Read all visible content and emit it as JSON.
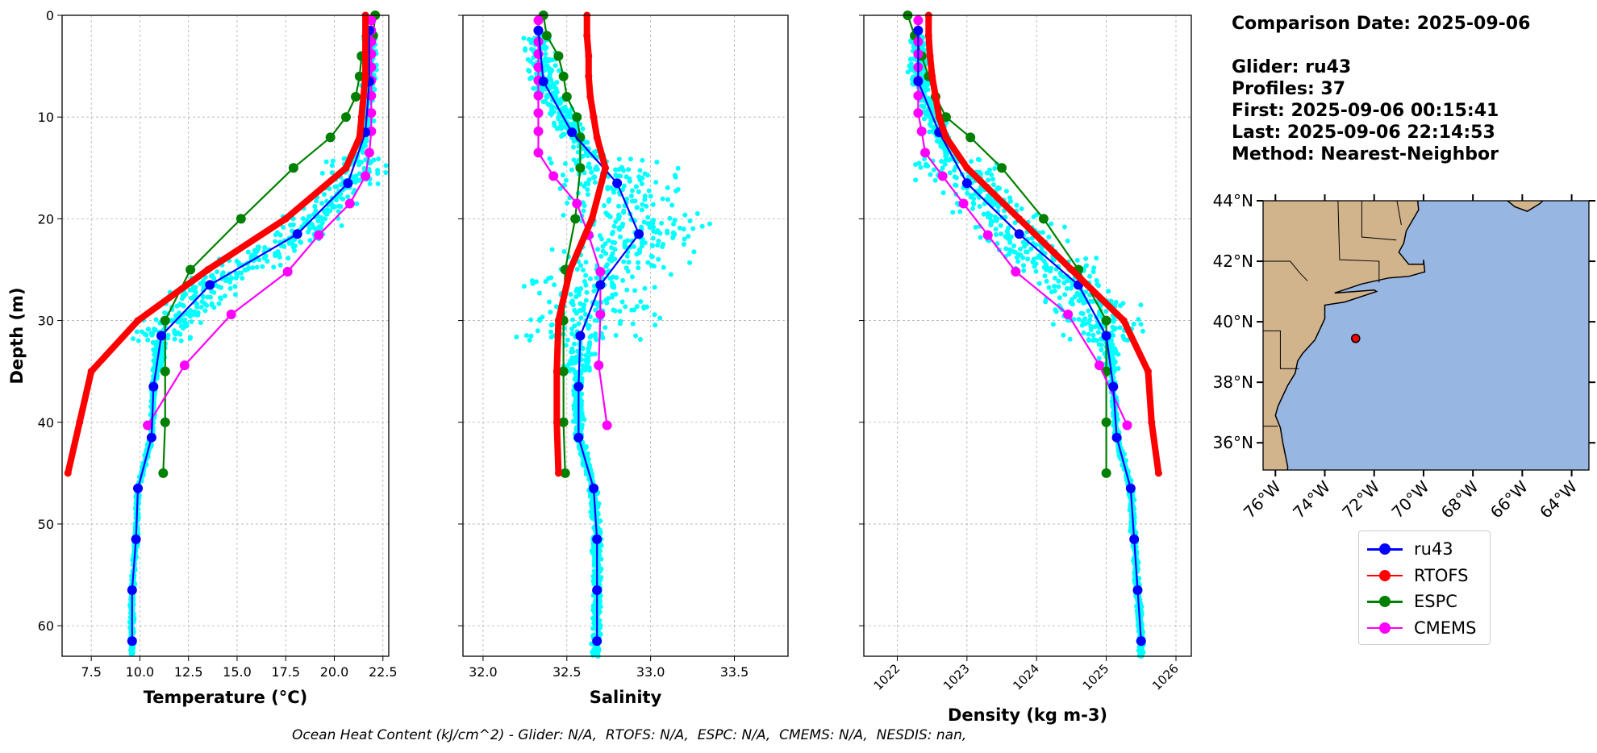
{
  "info": {
    "comparison_date": "Comparison Date: 2025-09-06",
    "glider": "Glider: ru43",
    "profiles": "Profiles: 37",
    "first": "First: 2025-09-06 00:15:41",
    "last": "Last: 2025-09-06 22:14:53",
    "method": "Method: Nearest-Neighbor"
  },
  "footer": "Ocean Heat Content (kJ/cm^2) - Glider: N/A,  RTOFS: N/A,  ESPC: N/A,  CMEMS: N/A,  NESDIS: nan,",
  "colors": {
    "ru43": "#0000ff",
    "RTOFS": "#ff0000",
    "ESPC": "#008000",
    "CMEMS": "#ff00ff",
    "glider_obs": "#00ffff",
    "land": "#d2b48c",
    "ocean": "#97b6e1"
  },
  "legend": [
    {
      "name": "ru43",
      "color": "#0000ff"
    },
    {
      "name": "RTOFS",
      "color": "#ff0000"
    },
    {
      "name": "ESPC",
      "color": "#008000"
    },
    {
      "name": "CMEMS",
      "color": "#ff00ff"
    }
  ],
  "chart_data": [
    {
      "type": "line",
      "xlabel": "Temperature (°C)",
      "ylabel": "Depth (m)",
      "xlim": [
        6.0,
        22.8
      ],
      "ylim": [
        63,
        0
      ],
      "grid": true,
      "xticks": [
        "7.5",
        "10.0",
        "12.5",
        "15.0",
        "17.5",
        "20.0",
        "22.5"
      ],
      "yticks": [
        "0",
        "10",
        "20",
        "30",
        "40",
        "50",
        "60"
      ],
      "series": [
        {
          "name": "ru43",
          "depth": [
            1.5,
            6.5,
            11.5,
            16.5,
            21.5,
            26.5,
            31.5,
            36.5,
            41.5,
            46.5,
            51.5,
            56.5,
            61.5
          ],
          "values": [
            21.8,
            21.8,
            21.6,
            20.7,
            18.1,
            13.6,
            11.1,
            10.7,
            10.6,
            9.9,
            9.8,
            9.6,
            9.6
          ]
        },
        {
          "name": "RTOFS",
          "depth": [
            0,
            2,
            4,
            6,
            8,
            10,
            12,
            15,
            20,
            25,
            30,
            35,
            40,
            45
          ],
          "values": [
            21.6,
            21.6,
            21.6,
            21.6,
            21.5,
            21.4,
            21.3,
            20.6,
            17.5,
            13.5,
            9.9,
            7.5,
            6.9,
            6.3
          ]
        },
        {
          "name": "ESPC",
          "depth": [
            0,
            2,
            4,
            6,
            8,
            10,
            12,
            15,
            20,
            25,
            30,
            35,
            40,
            45
          ],
          "values": [
            22.1,
            22.0,
            21.4,
            21.3,
            21.1,
            20.6,
            19.8,
            17.9,
            15.2,
            12.6,
            11.3,
            11.3,
            11.3,
            11.2
          ]
        },
        {
          "name": "CMEMS",
          "depth": [
            0.5,
            1.5,
            2.6,
            3.8,
            5.1,
            6.4,
            7.9,
            9.6,
            11.4,
            13.5,
            15.8,
            18.5,
            21.6,
            25.2,
            29.4,
            34.4,
            40.3
          ],
          "values": [
            21.9,
            21.9,
            21.9,
            21.9,
            21.9,
            21.9,
            21.9,
            21.9,
            21.9,
            21.8,
            21.6,
            20.8,
            19.2,
            17.6,
            14.7,
            12.3,
            10.4
          ]
        }
      ]
    },
    {
      "type": "line",
      "xlabel": "Salinity",
      "ylabel": "",
      "xlim": [
        31.88,
        33.82
      ],
      "ylim": [
        63,
        0
      ],
      "grid": true,
      "xticks": [
        "32.0",
        "32.5",
        "33.0",
        "33.5"
      ],
      "series": [
        {
          "name": "ru43",
          "depth": [
            1.5,
            6.5,
            11.5,
            16.5,
            21.5,
            26.5,
            31.5,
            36.5,
            41.5,
            46.5,
            51.5,
            56.5,
            61.5
          ],
          "values": [
            32.33,
            32.36,
            32.53,
            32.8,
            32.93,
            32.7,
            32.58,
            32.57,
            32.57,
            32.66,
            32.68,
            32.68,
            32.68
          ]
        },
        {
          "name": "RTOFS",
          "depth": [
            0,
            2,
            4,
            6,
            8,
            10,
            12,
            15,
            20,
            25,
            30,
            35,
            40,
            45
          ],
          "values": [
            32.62,
            32.62,
            32.63,
            32.63,
            32.64,
            32.66,
            32.68,
            32.73,
            32.65,
            32.52,
            32.45,
            32.44,
            32.44,
            32.45
          ]
        },
        {
          "name": "ESPC",
          "depth": [
            0,
            2,
            4,
            6,
            8,
            10,
            12,
            15,
            20,
            25,
            30,
            35,
            40,
            45
          ],
          "values": [
            32.36,
            32.38,
            32.45,
            32.48,
            32.5,
            32.56,
            32.58,
            32.58,
            32.55,
            32.49,
            32.48,
            32.48,
            32.48,
            32.49
          ]
        },
        {
          "name": "CMEMS",
          "depth": [
            0.5,
            1.5,
            2.6,
            3.8,
            5.1,
            6.4,
            7.9,
            9.6,
            11.4,
            13.5,
            15.8,
            18.5,
            21.6,
            25.2,
            29.4,
            34.4,
            40.3
          ],
          "values": [
            32.33,
            32.33,
            32.33,
            32.33,
            32.33,
            32.33,
            32.33,
            32.33,
            32.33,
            32.33,
            32.42,
            32.56,
            32.63,
            32.7,
            32.7,
            32.69,
            32.74
          ]
        }
      ]
    },
    {
      "type": "line",
      "xlabel": "Density (kg m-3)",
      "ylabel": "",
      "xlim": [
        1021.52,
        1026.22
      ],
      "ylim": [
        63,
        0
      ],
      "grid": true,
      "xticks": [
        "1022",
        "1023",
        "1024",
        "1025",
        "1026"
      ],
      "series": [
        {
          "name": "ru43",
          "depth": [
            1.5,
            6.5,
            11.5,
            16.5,
            21.5,
            26.5,
            31.5,
            36.5,
            41.5,
            46.5,
            51.5,
            56.5,
            61.5
          ],
          "values": [
            1022.3,
            1022.3,
            1022.6,
            1023.0,
            1023.75,
            1024.6,
            1025.0,
            1025.1,
            1025.15,
            1025.35,
            1025.4,
            1025.45,
            1025.5
          ]
        },
        {
          "name": "RTOFS",
          "depth": [
            0,
            2,
            4,
            6,
            8,
            10,
            12,
            15,
            20,
            25,
            30,
            35,
            40,
            45
          ],
          "values": [
            1022.45,
            1022.45,
            1022.47,
            1022.5,
            1022.55,
            1022.6,
            1022.7,
            1023.0,
            1023.75,
            1024.5,
            1025.25,
            1025.6,
            1025.65,
            1025.75
          ]
        },
        {
          "name": "ESPC",
          "depth": [
            0,
            2,
            4,
            6,
            8,
            10,
            12,
            15,
            20,
            25,
            30,
            35,
            40,
            45
          ],
          "values": [
            1022.15,
            1022.25,
            1022.35,
            1022.45,
            1022.55,
            1022.7,
            1023.05,
            1023.5,
            1024.1,
            1024.6,
            1025.0,
            1025.0,
            1025.0,
            1025.0
          ]
        },
        {
          "name": "CMEMS",
          "depth": [
            0.5,
            1.5,
            2.6,
            3.8,
            5.1,
            6.4,
            7.9,
            9.6,
            11.4,
            13.5,
            15.8,
            18.5,
            21.6,
            25.2,
            29.4,
            34.4,
            40.3
          ],
          "values": [
            1022.3,
            1022.3,
            1022.3,
            1022.3,
            1022.3,
            1022.3,
            1022.3,
            1022.3,
            1022.35,
            1022.4,
            1022.65,
            1022.95,
            1023.3,
            1023.7,
            1024.45,
            1024.9,
            1025.3
          ]
        }
      ]
    }
  ],
  "map": {
    "lon_range": [
      -76.5,
      -63.3
    ],
    "lat_range": [
      35.1,
      44
    ],
    "xticks": [
      "76°W",
      "74°W",
      "72°W",
      "70°W",
      "68°W",
      "66°W",
      "64°W"
    ],
    "yticks": [
      "36°N",
      "38°N",
      "40°N",
      "42°N",
      "44°N"
    ],
    "glider_position": {
      "lon": -72.75,
      "lat": 39.45
    }
  }
}
